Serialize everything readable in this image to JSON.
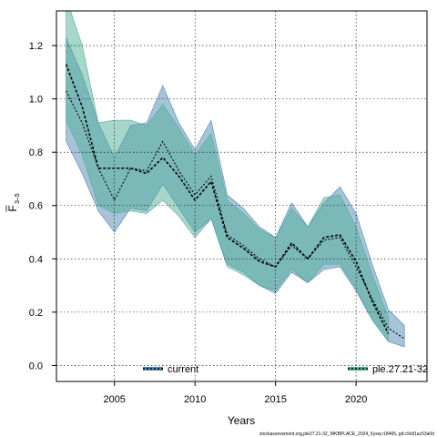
{
  "chart_data": {
    "type": "line",
    "xlabel": "Years",
    "ylabel_main": "F",
    "ylabel_sub": "3–5",
    "xlim": [
      2001.4,
      2024.4
    ],
    "ylim": [
      -0.06,
      1.33
    ],
    "xticks": [
      2005,
      2010,
      2015,
      2020
    ],
    "yticks": [
      0.0,
      0.2,
      0.4,
      0.6,
      0.8,
      1.0,
      1.2
    ],
    "ytick_labels": [
      "0.0",
      "0.2",
      "0.4",
      "0.6",
      "0.8",
      "1.0",
      "1.2"
    ],
    "grid": true,
    "legend_position": "bottom",
    "series": [
      {
        "name": "current",
        "color": "#2a5f9e",
        "band_color": "#4f87b3",
        "x": [
          2002,
          2003,
          2004,
          2005,
          2006,
          2007,
          2008,
          2009,
          2010,
          2011,
          2012,
          2013,
          2014,
          2015,
          2016,
          2017,
          2018,
          2019,
          2020,
          2021,
          2022,
          2023
        ],
        "values": [
          1.03,
          0.91,
          0.74,
          0.62,
          0.74,
          0.73,
          0.84,
          0.73,
          0.64,
          0.71,
          0.49,
          0.45,
          0.4,
          0.37,
          0.45,
          0.4,
          0.47,
          0.48,
          0.37,
          0.25,
          0.14,
          0.1
        ],
        "lower": [
          0.84,
          0.72,
          0.58,
          0.5,
          0.59,
          0.58,
          0.68,
          0.59,
          0.5,
          0.55,
          0.38,
          0.35,
          0.3,
          0.27,
          0.35,
          0.31,
          0.36,
          0.37,
          0.28,
          0.17,
          0.09,
          0.07
        ],
        "upper": [
          1.23,
          1.09,
          0.91,
          0.78,
          0.9,
          0.91,
          1.05,
          0.91,
          0.81,
          0.92,
          0.64,
          0.59,
          0.52,
          0.48,
          0.61,
          0.52,
          0.61,
          0.67,
          0.57,
          0.38,
          0.21,
          0.15
        ]
      },
      {
        "name": "ple.27.21-32",
        "color": "#1a6b5a",
        "band_color": "#4fae98",
        "x": [
          2002,
          2003,
          2004,
          2005,
          2006,
          2007,
          2008,
          2009,
          2010,
          2011,
          2012,
          2013,
          2014,
          2015,
          2016,
          2017,
          2018,
          2019,
          2020,
          2021,
          2022
        ],
        "values": [
          1.13,
          0.97,
          0.74,
          0.74,
          0.74,
          0.72,
          0.78,
          0.71,
          0.62,
          0.69,
          0.48,
          0.44,
          0.39,
          0.37,
          0.46,
          0.4,
          0.48,
          0.49,
          0.39,
          0.24,
          0.12
        ],
        "lower": [
          0.92,
          0.79,
          0.6,
          0.57,
          0.58,
          0.57,
          0.62,
          0.56,
          0.48,
          0.55,
          0.37,
          0.34,
          0.3,
          0.28,
          0.36,
          0.31,
          0.38,
          0.38,
          0.29,
          0.17,
          0.09
        ],
        "upper": [
          1.38,
          1.2,
          0.91,
          0.92,
          0.92,
          0.9,
          0.98,
          0.89,
          0.79,
          0.87,
          0.62,
          0.57,
          0.51,
          0.48,
          0.59,
          0.52,
          0.63,
          0.64,
          0.52,
          0.34,
          0.18
        ]
      }
    ]
  },
  "footer_text": "stockassessment.org,ple27.21-32_WKBPLACE_2024_5ysw,r18465, git:c9c81ac53a0d"
}
